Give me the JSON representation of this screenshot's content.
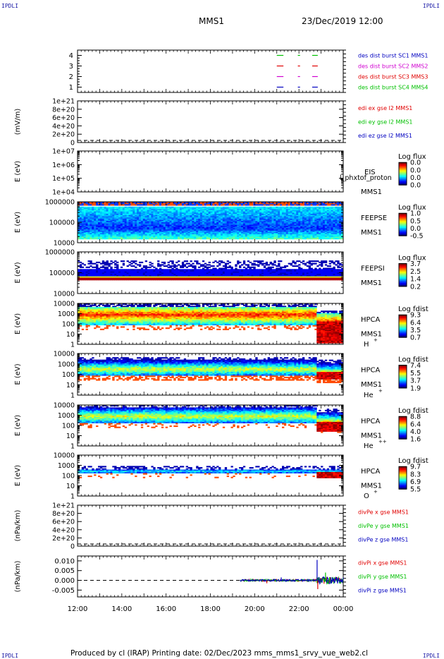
{
  "corners": {
    "tl": "IPDLI",
    "tr": "IPDLI",
    "bl": "IPDLI",
    "br": "IPDLI"
  },
  "header": {
    "spacecraft": "MMS1",
    "datetime": "23/Dec/2019 12:00"
  },
  "footer": {
    "text": "Produced by cl (IRAP)   Printing date: 02/Dec/2023   mms_mms1_srvy_vue_web2.cl"
  },
  "time_axis": {
    "ticks": [
      "12:00",
      "14:00",
      "16:00",
      "18:00",
      "20:00",
      "22:00",
      "00:00"
    ],
    "range_hours": [
      12,
      24
    ]
  },
  "colors": {
    "red": "#e00000",
    "green": "#00c000",
    "blue": "#0000c0",
    "magenta": "#d000d0"
  },
  "chart_data": [
    {
      "type": "line",
      "name": "burst",
      "ylim": [
        0.5,
        4.5
      ],
      "ylabel": "",
      "yticks": [
        "1",
        "2",
        "3",
        "4"
      ],
      "legend": [
        {
          "text": "des dist burst SC1 MMS1",
          "color": "#0000c0"
        },
        {
          "text": "des dist burst SC2 MMS2",
          "color": "#d000d0"
        },
        {
          "text": "des dist burst SC3 MMS3",
          "color": "#e00000"
        },
        {
          "text": "des dist burst SC4 MMS4",
          "color": "#00c000"
        }
      ],
      "series": [
        {
          "level": 4,
          "color": "#00c000",
          "segments": [
            [
              21.0,
              21.3
            ],
            [
              21.95,
              22.05
            ],
            [
              22.6,
              22.85
            ]
          ]
        },
        {
          "level": 3,
          "color": "#e00000",
          "segments": [
            [
              21.0,
              21.3
            ],
            [
              21.95,
              22.05
            ],
            [
              22.6,
              22.85
            ]
          ]
        },
        {
          "level": 2,
          "color": "#d000d0",
          "segments": [
            [
              21.0,
              21.3
            ],
            [
              21.95,
              22.05
            ],
            [
              22.6,
              22.85
            ]
          ]
        },
        {
          "level": 1,
          "color": "#0000c0",
          "segments": [
            [
              21.0,
              21.3
            ],
            [
              21.95,
              22.05
            ],
            [
              22.6,
              22.85
            ]
          ]
        }
      ]
    },
    {
      "type": "line",
      "name": "edi",
      "ylabel": "(mV/m)",
      "yticks": [
        "1e+21",
        "8e+20",
        "6e+20",
        "4e+20",
        "2e+20",
        "0"
      ],
      "legend": [
        {
          "text": "edi ex gse l2 MMS1",
          "color": "#e00000"
        },
        {
          "text": "edi ey gse l2 MMS1",
          "color": "#00c000"
        },
        {
          "text": "edi ez gse l2 MMS1",
          "color": "#0000c0"
        }
      ]
    },
    {
      "type": "heatmap",
      "name": "eis",
      "ylabel": "E (eV)",
      "yticks": [
        "1e+07",
        "1e+06",
        "1e+05",
        "1e+04"
      ],
      "label1": "EIS",
      "label2": "MMS1",
      "overlay": "l_phxtof_proton",
      "cbar_title": "Log flux",
      "cbar_ticks": [
        "0.0",
        "0.0",
        "0.0",
        "0.0"
      ]
    },
    {
      "type": "heatmap",
      "name": "feepse",
      "ylabel": "E (eV)",
      "yticks": [
        "1000000",
        "100000",
        "10000"
      ],
      "label1": "FEEPSE",
      "label2": "MMS1",
      "cbar_title": "Log flux",
      "cbar_ticks": [
        "1.0",
        "0.5",
        "0.0",
        "-0.5"
      ]
    },
    {
      "type": "heatmap",
      "name": "feepsi",
      "ylabel": "E (eV)",
      "yticks": [
        "1000000",
        "100000",
        "10000"
      ],
      "label1": "FEEPSI",
      "label2": "MMS1",
      "cbar_title": "Log flux",
      "cbar_ticks": [
        "3.7",
        "2.5",
        "1.4",
        "0.2"
      ]
    },
    {
      "type": "heatmap",
      "name": "hpca-h",
      "ylabel": "E (eV)",
      "yticks": [
        "10000",
        "1000",
        "100",
        "10",
        "1"
      ],
      "label1": "HPCA",
      "label2": "MMS1",
      "species": "H",
      "charge": "+",
      "cbar_title": "Log fdist",
      "cbar_ticks": [
        "9.3",
        "6.4",
        "3.5",
        "0.7"
      ]
    },
    {
      "type": "heatmap",
      "name": "hpca-he",
      "ylabel": "E (eV)",
      "yticks": [
        "10000",
        "1000",
        "100",
        "10",
        "1"
      ],
      "label1": "HPCA",
      "label2": "MMS1",
      "species": "He",
      "charge": "+",
      "cbar_title": "Log fdist",
      "cbar_ticks": [
        "7.4",
        "5.5",
        "3.7",
        "1.9"
      ]
    },
    {
      "type": "heatmap",
      "name": "hpca-hepp",
      "ylabel": "E (eV)",
      "yticks": [
        "10000",
        "1000",
        "100",
        "10",
        "1"
      ],
      "label1": "HPCA",
      "label2": "MMS1",
      "species": "He",
      "charge": "++",
      "cbar_title": "Log fdist",
      "cbar_ticks": [
        "8.8",
        "6.4",
        "4.0",
        "1.6"
      ]
    },
    {
      "type": "heatmap",
      "name": "hpca-o",
      "ylabel": "E (eV)",
      "yticks": [
        "10000",
        "1000",
        "100",
        "10",
        "1"
      ],
      "label1": "HPCA",
      "label2": "MMS1",
      "species": "O",
      "charge": "+",
      "cbar_title": "Log fdist",
      "cbar_ticks": [
        "9.7",
        "8.3",
        "6.9",
        "5.5"
      ]
    },
    {
      "type": "line",
      "name": "divpe",
      "ylabel": "(nPa/km)",
      "yticks": [
        "1e+21",
        "8e+20",
        "6e+20",
        "4e+20",
        "2e+20",
        "0"
      ],
      "legend": [
        {
          "text": "divPe x gse MMS1",
          "color": "#e00000"
        },
        {
          "text": "divPe y gse MMS1",
          "color": "#00c000"
        },
        {
          "text": "divPe z gse MMS1",
          "color": "#0000c0"
        }
      ]
    },
    {
      "type": "line",
      "name": "divpi",
      "ylabel": "(nPa/km)",
      "ylim": [
        -0.0085,
        0.0125
      ],
      "yticks": [
        "0.010",
        "0.005",
        "0.000",
        "-0.005"
      ],
      "legend": [
        {
          "text": "divPi x gse MMS1",
          "color": "#e00000"
        },
        {
          "text": "divPi y gse MMS1",
          "color": "#00c000"
        },
        {
          "text": "divPi z gse MMS1",
          "color": "#0000c0"
        }
      ],
      "data_span_hours": [
        19.35,
        24.0
      ],
      "spikes": [
        {
          "t": 22.82,
          "y": 0.0105,
          "color": "#0000c0"
        },
        {
          "t": 22.85,
          "y": -0.0045,
          "color": "#e00000"
        },
        {
          "t": 23.2,
          "y": 0.004,
          "color": "#00c000"
        },
        {
          "t": 20.55,
          "y": -0.0015,
          "color": "#e00000"
        },
        {
          "t": 21.2,
          "y": 0.0015,
          "color": "#0000c0"
        }
      ]
    }
  ]
}
